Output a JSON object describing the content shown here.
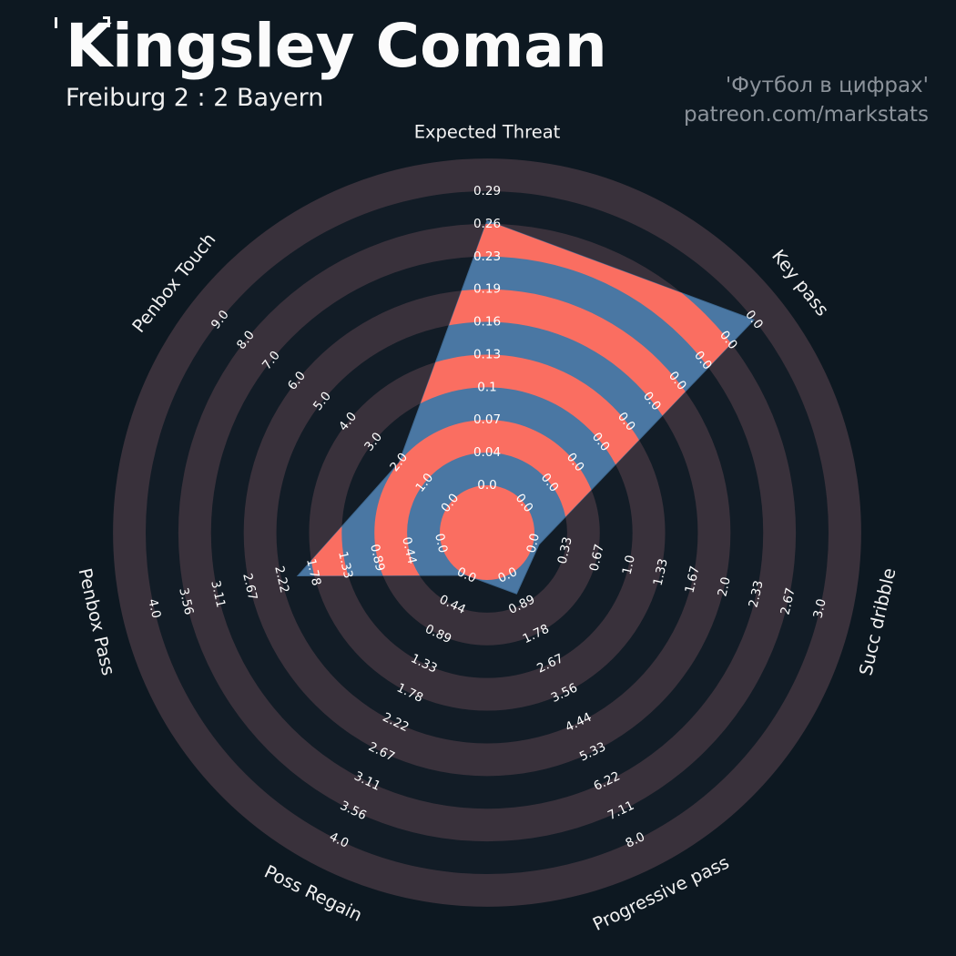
{
  "header": {
    "title": "Kingsley Coman",
    "subtitle": "Freiburg 2 : 2 Bayern",
    "credit_line1": "'Футбол в цифрах'",
    "credit_line2": "patreon.com/markstats"
  },
  "colors": {
    "background": "#0D1821",
    "ring_dark": "#121C26",
    "ring_light": "#39313B",
    "polygon_fill": "#4A77A3",
    "polygon_edge": "#3D6890",
    "ring_accent": "#FA6E61",
    "tick_text": "#FFFFFF",
    "axis_text": "#F2F2F2",
    "credit_text": "#8C939B",
    "title_text": "#FBFBFB"
  },
  "chart_data": {
    "type": "radar",
    "title": "Kingsley Coman — Freiburg 2 : 2 Bayern",
    "params": [
      "Expected Threat",
      "Key pass",
      "Succ dribble",
      "Progressive pass",
      "Poss Regain",
      "Penbox Pass",
      "Penbox Touch"
    ],
    "values": [
      0.26,
      0.0,
      0.05,
      0.55,
      0.0,
      2.0,
      2.0
    ],
    "ranges": [
      [
        0,
        0.29
      ],
      [
        0,
        0
      ],
      [
        0,
        3.0
      ],
      [
        0,
        8.0
      ],
      [
        0,
        4.0
      ],
      [
        0,
        4.0
      ],
      [
        0,
        9.0
      ]
    ],
    "value_fractions": [
      0.9,
      1.0,
      0.02,
      0.07,
      0.0,
      0.5,
      0.222
    ],
    "num_rings": 9,
    "start_angle_deg": 90,
    "direction": "clockwise",
    "legend_position": "none",
    "grid": "concentric-rings",
    "tick_labels": [
      [
        "0.0",
        "0.04",
        "0.07",
        "0.1",
        "0.13",
        "0.16",
        "0.19",
        "0.23",
        "0.26",
        "0.29"
      ],
      [
        "0.0",
        "0.0",
        "0.0",
        "0.0",
        "0.0",
        "0.0",
        "0.0",
        "0.0",
        "0.0",
        "0.0"
      ],
      [
        "0.0",
        "0.33",
        "0.67",
        "1.0",
        "1.33",
        "1.67",
        "2.0",
        "2.33",
        "2.67",
        "3.0"
      ],
      [
        "0.0",
        "0.89",
        "1.78",
        "2.67",
        "3.56",
        "4.44",
        "5.33",
        "6.22",
        "7.11",
        "8.0"
      ],
      [
        "0.0",
        "0.44",
        "0.89",
        "1.33",
        "1.78",
        "2.22",
        "2.67",
        "3.11",
        "3.56",
        "4.0"
      ],
      [
        "0.0",
        "0.44",
        "0.89",
        "1.33",
        "1.78",
        "2.22",
        "2.67",
        "3.11",
        "3.56",
        "4.0"
      ],
      [
        "0.0",
        "1.0",
        "2.0",
        "3.0",
        "4.0",
        "5.0",
        "6.0",
        "7.0",
        "8.0",
        "9.0"
      ]
    ]
  }
}
